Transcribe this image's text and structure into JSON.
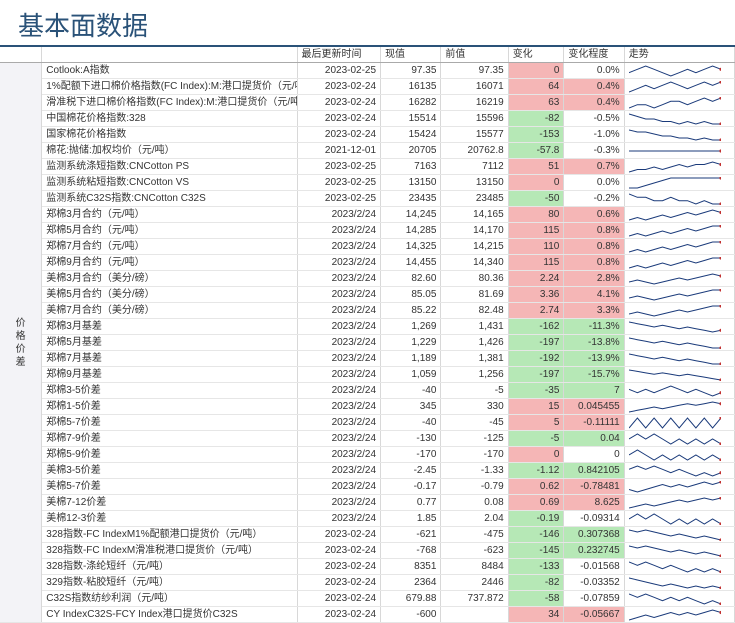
{
  "title": "基本面数据",
  "headers": {
    "sideLabel": "价格价差",
    "name": "",
    "time": "最后更新时间",
    "cur": "现值",
    "prev": "前值",
    "chg": "变化",
    "pct": "变化程度",
    "trend": "走势"
  },
  "style": {
    "posBg": "#f5b6b6",
    "negBg": "#b6e8b6",
    "lineColor": "#1a3a7a",
    "dotColor": "#c23030",
    "titleColor": "#2a5278"
  },
  "sideLabelStart": 17,
  "rows": [
    {
      "name": "Cotlook:A指数",
      "time": "2023-02-25",
      "cur": "97.35",
      "prev": "97.35",
      "chg": "0",
      "chgC": "pos",
      "pct": "0.0%",
      "pctC": "",
      "spark": [
        5,
        6,
        7,
        6,
        5,
        4,
        5,
        6,
        5,
        6,
        7,
        6
      ]
    },
    {
      "name": "1%配额下进口棉价格指数(FC Index):M:港口提货价（元/吨）",
      "time": "2023-02-24",
      "cur": "16135",
      "prev": "16071",
      "chg": "64",
      "chgC": "pos",
      "pct": "0.4%",
      "pctC": "pos",
      "spark": [
        4,
        5,
        6,
        5,
        6,
        7,
        6,
        5,
        6,
        7,
        6,
        7
      ]
    },
    {
      "name": "滑准税下进口棉价格指数(FC Index):M:港口提货价（元/吨）",
      "time": "2023-02-24",
      "cur": "16282",
      "prev": "16219",
      "chg": "63",
      "chgC": "pos",
      "pct": "0.4%",
      "pctC": "pos",
      "spark": [
        5,
        6,
        6,
        5,
        6,
        7,
        7,
        6,
        7,
        8,
        7,
        8
      ]
    },
    {
      "name": "中国棉花价格指数:328",
      "time": "2023-02-24",
      "cur": "15514",
      "prev": "15596",
      "chg": "-82",
      "chgC": "neg",
      "pct": "-0.5%",
      "pctC": "",
      "spark": [
        8,
        7,
        6,
        6,
        5,
        5,
        4,
        5,
        4,
        5,
        4,
        4
      ]
    },
    {
      "name": "国家棉花价格指数",
      "time": "2023-02-24",
      "cur": "15424",
      "prev": "15577",
      "chg": "-153",
      "chgC": "neg",
      "pct": "-1.0%",
      "pctC": "",
      "spark": [
        8,
        7,
        7,
        6,
        5,
        5,
        4,
        4,
        3,
        4,
        3,
        3
      ]
    },
    {
      "name": "棉花:抛储:加权均价（元/吨）",
      "time": "2021-12-01",
      "cur": "20705",
      "prev": "20762.8",
      "chg": "-57.8",
      "chgC": "neg",
      "pct": "-0.3%",
      "pctC": "",
      "spark": [
        6,
        6,
        6,
        6,
        6,
        6,
        6,
        6,
        6,
        6,
        6,
        6
      ]
    },
    {
      "name": "监测系统涤短指数:CNCotton PS",
      "time": "2023-02-25",
      "cur": "7163",
      "prev": "7112",
      "chg": "51",
      "chgC": "pos",
      "pct": "0.7%",
      "pctC": "pos",
      "spark": [
        4,
        5,
        5,
        6,
        5,
        6,
        7,
        6,
        7,
        7,
        8,
        7
      ]
    },
    {
      "name": "监测系统粘短指数:CNCotton VS",
      "time": "2023-02-25",
      "cur": "13150",
      "prev": "13150",
      "chg": "0",
      "chgC": "pos",
      "pct": "0.0%",
      "pctC": "",
      "spark": [
        5,
        5,
        6,
        7,
        8,
        9,
        9,
        9,
        9,
        9,
        9,
        9
      ]
    },
    {
      "name": "监测系统C32S指数:CNCotton C32S",
      "time": "2023-02-25",
      "cur": "23435",
      "prev": "23485",
      "chg": "-50",
      "chgC": "neg",
      "pct": "-0.2%",
      "pctC": "",
      "spark": [
        7,
        6,
        6,
        5,
        5,
        6,
        5,
        5,
        4,
        5,
        4,
        4
      ]
    },
    {
      "name": "郑棉3月合约（元/吨）",
      "time": "2023/2/24",
      "cur": "14,245",
      "prev": "14,165",
      "chg": "80",
      "chgC": "pos",
      "pct": "0.6%",
      "pctC": "pos",
      "spark": [
        4,
        5,
        4,
        5,
        6,
        5,
        6,
        7,
        6,
        7,
        8,
        7
      ]
    },
    {
      "name": "郑棉5月合约（元/吨）",
      "time": "2023/2/24",
      "cur": "14,285",
      "prev": "14,170",
      "chg": "115",
      "chgC": "pos",
      "pct": "0.8%",
      "pctC": "pos",
      "spark": [
        4,
        5,
        4,
        5,
        6,
        5,
        6,
        7,
        6,
        7,
        8,
        8
      ]
    },
    {
      "name": "郑棉7月合约（元/吨）",
      "time": "2023/2/24",
      "cur": "14,325",
      "prev": "14,215",
      "chg": "110",
      "chgC": "pos",
      "pct": "0.8%",
      "pctC": "pos",
      "spark": [
        4,
        5,
        4,
        5,
        6,
        5,
        6,
        7,
        6,
        7,
        8,
        8
      ]
    },
    {
      "name": "郑棉9月合约（元/吨）",
      "time": "2023/2/24",
      "cur": "14,455",
      "prev": "14,340",
      "chg": "115",
      "chgC": "pos",
      "pct": "0.8%",
      "pctC": "pos",
      "spark": [
        4,
        5,
        4,
        5,
        6,
        5,
        6,
        7,
        6,
        7,
        8,
        8
      ]
    },
    {
      "name": "美棉3月合约（美分/磅）",
      "time": "2023/2/24",
      "cur": "82.60",
      "prev": "80.36",
      "chg": "2.24",
      "chgC": "pos",
      "pct": "2.8%",
      "pctC": "pos",
      "spark": [
        5,
        6,
        5,
        4,
        5,
        6,
        7,
        6,
        7,
        8,
        9,
        8
      ]
    },
    {
      "name": "美棉5月合约（美分/磅）",
      "time": "2023/2/24",
      "cur": "85.05",
      "prev": "81.69",
      "chg": "3.36",
      "chgC": "pos",
      "pct": "4.1%",
      "pctC": "pos",
      "spark": [
        5,
        6,
        5,
        4,
        5,
        6,
        7,
        6,
        7,
        8,
        9,
        9
      ]
    },
    {
      "name": "美棉7月合约（美分/磅）",
      "time": "2023/2/24",
      "cur": "85.22",
      "prev": "82.48",
      "chg": "2.74",
      "chgC": "pos",
      "pct": "3.3%",
      "pctC": "pos",
      "spark": [
        5,
        6,
        5,
        4,
        5,
        6,
        7,
        6,
        7,
        8,
        9,
        9
      ]
    },
    {
      "name": "郑棉3月基差",
      "time": "2023/2/24",
      "cur": "1,269",
      "prev": "1,431",
      "chg": "-162",
      "chgC": "neg",
      "pct": "-11.3%",
      "pctC": "neg",
      "spark": [
        9,
        8,
        7,
        6,
        7,
        6,
        5,
        6,
        5,
        4,
        3,
        4
      ]
    },
    {
      "name": "郑棉5月基差",
      "time": "2023/2/24",
      "cur": "1,229",
      "prev": "1,426",
      "chg": "-197",
      "chgC": "neg",
      "pct": "-13.8%",
      "pctC": "neg",
      "spark": [
        9,
        8,
        7,
        6,
        7,
        6,
        5,
        6,
        5,
        4,
        3,
        3
      ]
    },
    {
      "name": "郑棉7月基差",
      "time": "2023/2/24",
      "cur": "1,189",
      "prev": "1,381",
      "chg": "-192",
      "chgC": "neg",
      "pct": "-13.9%",
      "pctC": "neg",
      "spark": [
        9,
        8,
        7,
        6,
        7,
        6,
        5,
        6,
        5,
        4,
        3,
        3
      ]
    },
    {
      "name": "郑棉9月基差",
      "time": "2023/2/24",
      "cur": "1,059",
      "prev": "1,256",
      "chg": "-197",
      "chgC": "neg",
      "pct": "-15.7%",
      "pctC": "neg",
      "spark": [
        9,
        8,
        7,
        6,
        7,
        6,
        5,
        6,
        5,
        4,
        3,
        2
      ]
    },
    {
      "name": "郑棉3-5价差",
      "time": "2023/2/24",
      "cur": "-40",
      "prev": "-5",
      "chg": "-35",
      "chgC": "neg",
      "pct": "7",
      "pctC": "neg",
      "spark": [
        6,
        5,
        6,
        5,
        6,
        7,
        6,
        5,
        6,
        5,
        4,
        5
      ]
    },
    {
      "name": "郑棉1-5价差",
      "time": "2023/2/24",
      "cur": "345",
      "prev": "330",
      "chg": "15",
      "chgC": "pos",
      "pct": "0.045455",
      "pctC": "pos",
      "spark": [
        3,
        4,
        5,
        6,
        5,
        6,
        7,
        8,
        7,
        8,
        9,
        8
      ]
    },
    {
      "name": "郑棉5-7价差",
      "time": "2023/2/24",
      "cur": "-40",
      "prev": "-45",
      "chg": "5",
      "chgC": "pos",
      "pct": "-0.11111",
      "pctC": "pos",
      "spark": [
        5,
        6,
        5,
        6,
        5,
        6,
        5,
        6,
        5,
        6,
        5,
        6
      ]
    },
    {
      "name": "郑棉7-9价差",
      "time": "2023/2/24",
      "cur": "-130",
      "prev": "-125",
      "chg": "-5",
      "chgC": "neg",
      "pct": "0.04",
      "pctC": "neg",
      "spark": [
        6,
        7,
        6,
        7,
        6,
        5,
        6,
        5,
        6,
        5,
        6,
        5
      ]
    },
    {
      "name": "郑棉5-9价差",
      "time": "2023/2/24",
      "cur": "-170",
      "prev": "-170",
      "chg": "0",
      "chgC": "pos",
      "pct": "0",
      "pctC": "",
      "spark": [
        6,
        7,
        6,
        5,
        6,
        5,
        6,
        5,
        6,
        5,
        6,
        5
      ]
    },
    {
      "name": "美棉3-5价差",
      "time": "2023/2/24",
      "cur": "-2.45",
      "prev": "-1.33",
      "chg": "-1.12",
      "chgC": "neg",
      "pct": "0.842105",
      "pctC": "neg",
      "spark": [
        5,
        6,
        5,
        6,
        5,
        4,
        5,
        4,
        3,
        4,
        3,
        4
      ]
    },
    {
      "name": "美棉5-7价差",
      "time": "2023/2/24",
      "cur": "-0.17",
      "prev": "-0.79",
      "chg": "0.62",
      "chgC": "pos",
      "pct": "-0.78481",
      "pctC": "pos",
      "spark": [
        5,
        4,
        5,
        6,
        7,
        6,
        7,
        6,
        7,
        8,
        7,
        8
      ]
    },
    {
      "name": "美棉7-12价差",
      "time": "2023/2/24",
      "cur": "0.77",
      "prev": "0.08",
      "chg": "0.69",
      "chgC": "pos",
      "pct": "8.625",
      "pctC": "pos",
      "spark": [
        4,
        5,
        6,
        5,
        6,
        7,
        8,
        7,
        8,
        9,
        8,
        9
      ]
    },
    {
      "name": "美棉12-3价差",
      "time": "2023/2/24",
      "cur": "1.85",
      "prev": "2.04",
      "chg": "-0.19",
      "chgC": "neg",
      "pct": "-0.09314",
      "pctC": "",
      "spark": [
        6,
        7,
        6,
        7,
        6,
        5,
        6,
        5,
        6,
        5,
        6,
        5
      ]
    },
    {
      "name": "328指数-FC IndexM1%配额港口提货价（元/吨）",
      "time": "2023-02-24",
      "cur": "-621",
      "prev": "-475",
      "chg": "-146",
      "chgC": "neg",
      "pct": "0.307368",
      "pctC": "neg",
      "spark": [
        8,
        7,
        8,
        7,
        6,
        5,
        6,
        5,
        4,
        5,
        4,
        3
      ]
    },
    {
      "name": "328指数-FC IndexM滑准税港口提货价（元/吨）",
      "time": "2023-02-24",
      "cur": "-768",
      "prev": "-623",
      "chg": "-145",
      "chgC": "neg",
      "pct": "0.232745",
      "pctC": "neg",
      "spark": [
        8,
        7,
        8,
        7,
        6,
        5,
        6,
        5,
        4,
        5,
        4,
        3
      ]
    },
    {
      "name": "328指数-涤纶短纤（元/吨）",
      "time": "2023-02-24",
      "cur": "8351",
      "prev": "8484",
      "chg": "-133",
      "chgC": "neg",
      "pct": "-0.01568",
      "pctC": "",
      "spark": [
        7,
        6,
        7,
        6,
        5,
        6,
        5,
        4,
        5,
        4,
        5,
        4
      ]
    },
    {
      "name": "329指数-粘胶短纤（元/吨）",
      "time": "2023-02-24",
      "cur": "2364",
      "prev": "2446",
      "chg": "-82",
      "chgC": "neg",
      "pct": "-0.03352",
      "pctC": "",
      "spark": [
        8,
        7,
        6,
        5,
        4,
        5,
        4,
        3,
        4,
        3,
        4,
        3
      ]
    },
    {
      "name": "C32S指数纺纱利润（元/吨）",
      "time": "2023-02-24",
      "cur": "679.88",
      "prev": "737.872",
      "chg": "-58",
      "chgC": "neg",
      "pct": "-0.07859",
      "pctC": "",
      "spark": [
        7,
        6,
        7,
        6,
        5,
        6,
        5,
        6,
        5,
        4,
        5,
        4
      ]
    },
    {
      "name": "CY IndexC32S-FCY Index港口提货价C32S",
      "time": "2023-02-24",
      "cur": "-600",
      "prev": "",
      "chg": "34",
      "chgC": "pos",
      "pct": "-0.05667",
      "pctC": "pos",
      "spark": [
        4,
        5,
        6,
        5,
        6,
        7,
        6,
        7,
        6,
        7,
        8,
        7
      ]
    }
  ]
}
